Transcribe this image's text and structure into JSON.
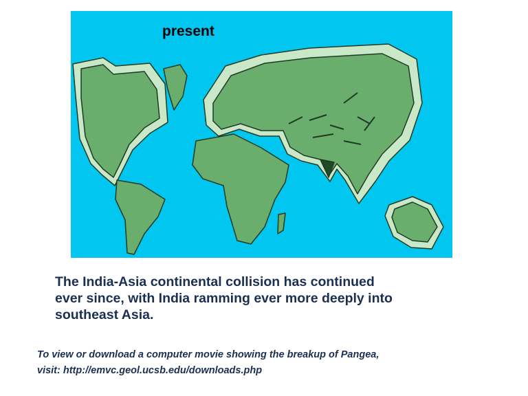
{
  "map": {
    "title": "present",
    "colors": {
      "ocean": "#00c6f0",
      "land": "#6aae6e",
      "shelf": "#c8e8c8",
      "outline": "#1f3a22"
    }
  },
  "caption": {
    "lines": [
      "The India-Asia continental collision has continued",
      "ever since, with India ramming ever more deeply into",
      "southeast Asia."
    ]
  },
  "note": {
    "lines": [
      "To view or download a computer movie showing the breakup of Pangea,",
      "visit: http://emvc.geol.ucsb.edu/downloads.php"
    ]
  }
}
